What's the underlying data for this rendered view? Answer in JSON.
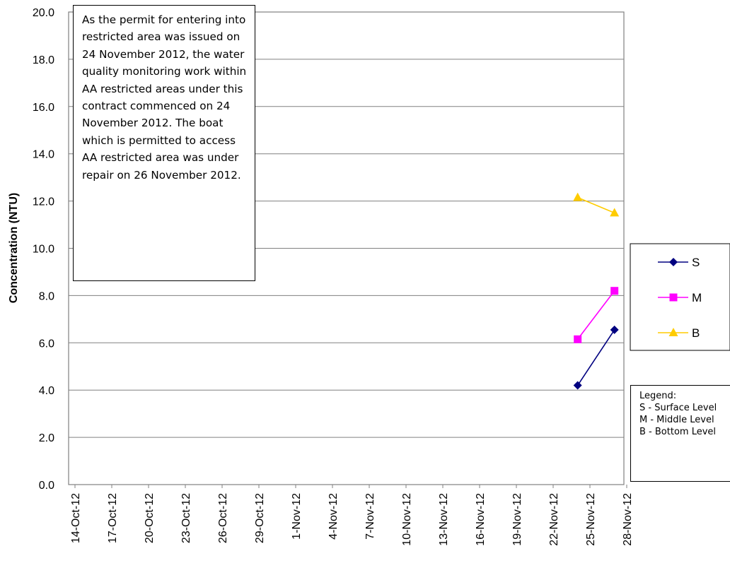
{
  "chart_data": {
    "type": "line",
    "ylabel": "Concentration (NTU)",
    "ylim": [
      0,
      20
    ],
    "y_ticks": [
      "0.0",
      "2.0",
      "4.0",
      "6.0",
      "8.0",
      "10.0",
      "12.0",
      "14.0",
      "16.0",
      "18.0",
      "20.0"
    ],
    "x_ticks": [
      "14-Oct-12",
      "17-Oct-12",
      "20-Oct-12",
      "23-Oct-12",
      "26-Oct-12",
      "29-Oct-12",
      "1-Nov-12",
      "4-Nov-12",
      "7-Nov-12",
      "10-Nov-12",
      "13-Nov-12",
      "16-Nov-12",
      "19-Nov-12",
      "22-Nov-12",
      "25-Nov-12",
      "28-Nov-12"
    ],
    "series": [
      {
        "name": "S",
        "color": "#000080",
        "marker": "diamond",
        "x": [
          "24-Nov-12",
          "27-Nov-12"
        ],
        "values": [
          4.2,
          6.55
        ]
      },
      {
        "name": "M",
        "color": "#FF00FF",
        "marker": "square",
        "x": [
          "24-Nov-12",
          "27-Nov-12"
        ],
        "values": [
          6.15,
          8.2
        ]
      },
      {
        "name": "B",
        "color": "#FFCC00",
        "marker": "triangle",
        "x": [
          "24-Nov-12",
          "27-Nov-12"
        ],
        "values": [
          12.15,
          11.5
        ]
      }
    ],
    "grid": true,
    "legend_position": "right"
  },
  "annotation": {
    "text": "As the permit for entering into restricted area was issued on 24 November 2012,  the water quality monitoring work within AA restricted areas under this contract commenced on 24 November 2012. The boat which is permitted to access AA restricted area was  under repair on 26 November 2012."
  },
  "key": {
    "lines": [
      "Legend:",
      "S - Surface Level",
      "M - Middle Level",
      "B - Bottom Level"
    ]
  }
}
